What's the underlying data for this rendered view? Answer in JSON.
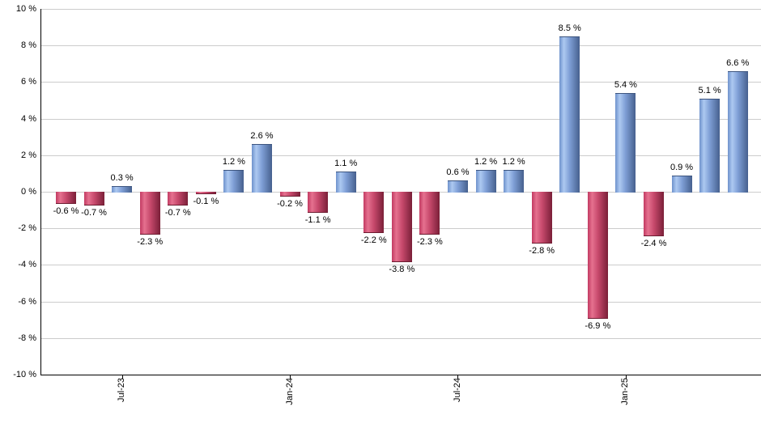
{
  "chart_data": {
    "type": "bar",
    "title": "",
    "unit": "%",
    "values": [
      -0.6,
      -0.7,
      0.3,
      -2.3,
      -0.7,
      -0.1,
      1.2,
      2.6,
      -0.2,
      -1.1,
      1.1,
      -2.2,
      -3.8,
      -2.3,
      0.6,
      1.2,
      1.2,
      -2.8,
      8.5,
      -6.9,
      5.4,
      -2.4,
      0.9,
      5.1,
      6.6
    ],
    "bar_labels": [
      "-0.6 %",
      "-0.7 %",
      "0.3 %",
      "-2.3 %",
      "-0.7 %",
      "-0.1 %",
      "1.2 %",
      "2.6 %",
      "-0.2 %",
      "-1.1 %",
      "1.1 %",
      "-2.2 %",
      "-3.8 %",
      "-2.3 %",
      "0.6 %",
      "1.2 %",
      "1.2 %",
      "-2.8 %",
      "8.5 %",
      "-6.9 %",
      "5.4 %",
      "-2.4 %",
      "0.9 %",
      "5.1 %",
      "6.6 %"
    ],
    "x_ticks": [
      {
        "label": "Jul-23",
        "bar_index": 2
      },
      {
        "label": "Jan-24",
        "bar_index": 8
      },
      {
        "label": "Jul-24",
        "bar_index": 14
      },
      {
        "label": "Jan-25",
        "bar_index": 20
      }
    ],
    "y_ticks": [
      {
        "value": 10,
        "label": "10 %"
      },
      {
        "value": 8,
        "label": "8 %"
      },
      {
        "value": 6,
        "label": "6 %"
      },
      {
        "value": 4,
        "label": "4 %"
      },
      {
        "value": 2,
        "label": "2 %"
      },
      {
        "value": 0,
        "label": "0 %"
      },
      {
        "value": -2,
        "label": "-2 %"
      },
      {
        "value": -4,
        "label": "-4 %"
      },
      {
        "value": -6,
        "label": "-6 %"
      },
      {
        "value": -8,
        "label": "-8 %"
      },
      {
        "value": -10,
        "label": "-10 %"
      }
    ],
    "ylim": [
      -10,
      10
    ],
    "grid": true,
    "legend": "none",
    "colors": {
      "positive_edge_left": "#6e92cc",
      "positive_highlight": "#adc9f1",
      "positive_mid": "#7f9fd6",
      "positive_edge_right": "#46608e",
      "negative_edge_left": "#c23a62",
      "negative_highlight": "#e5718f",
      "negative_mid": "#c84a6d",
      "negative_edge_right": "#7a1f38",
      "gridline": "#cccccc",
      "axis": "#000000",
      "text": "#000000",
      "background": "#ffffff"
    }
  }
}
